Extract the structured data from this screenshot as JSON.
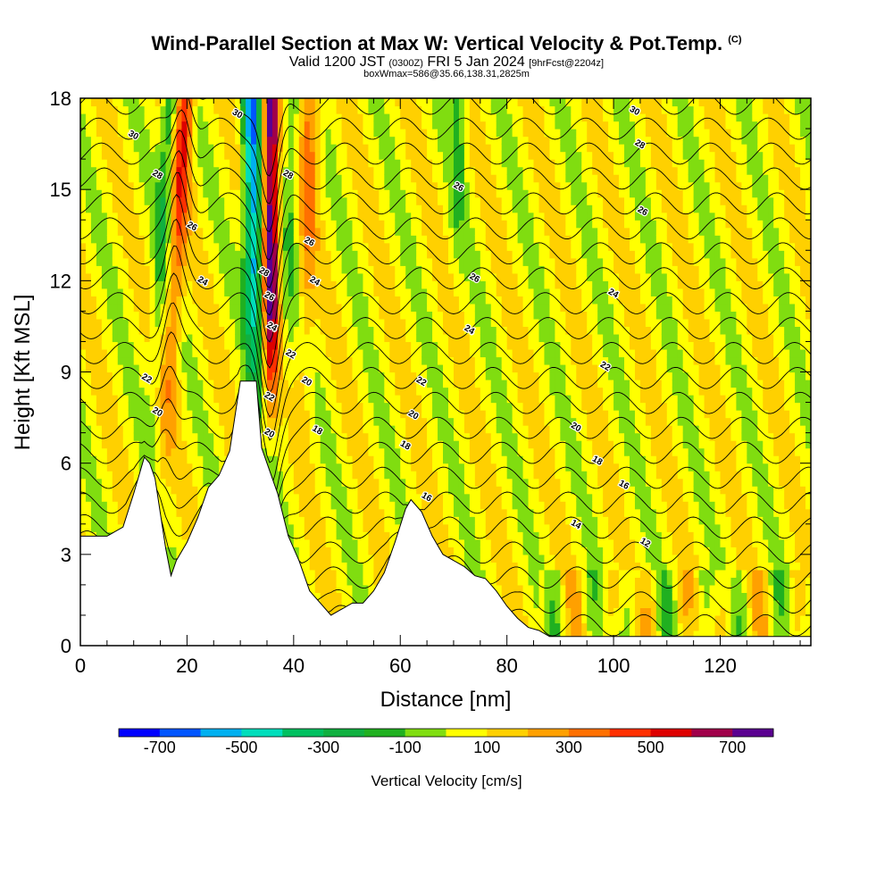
{
  "header": {
    "title": "Wind-Parallel Section at Max W: Vertical Velocity & Pot.Temp.",
    "copyright": "(C)",
    "valid_main": "Valid 1200 JST",
    "valid_z": "(0300Z)",
    "valid_date": "FRI 5 Jan 2024",
    "valid_fcst": "[9hrFcst@2204z]",
    "box_info": "boxWmax=586@35.66,138.31,2825m"
  },
  "chart_data": {
    "type": "heatmap",
    "xlabel": "Distance [nm]",
    "ylabel": "Height [Kft MSL]",
    "xlim": [
      0,
      137
    ],
    "ylim": [
      0,
      18
    ],
    "x_ticks": [
      0,
      20,
      40,
      60,
      80,
      100,
      120
    ],
    "y_ticks": [
      0,
      3,
      6,
      9,
      12,
      15,
      18
    ],
    "colorbar": {
      "title": "Vertical Velocity [cm/s]",
      "tick_labels": [
        "-700",
        "-500",
        "-300",
        "-100",
        "100",
        "300",
        "500",
        "700"
      ],
      "tick_values": [
        -700,
        -500,
        -300,
        -100,
        100,
        300,
        500,
        700
      ],
      "range": [
        -800,
        800
      ],
      "colors": [
        "#0000ff",
        "#0055ff",
        "#00b0f0",
        "#00ddbb",
        "#00c060",
        "#10b040",
        "#20b020",
        "#80dd10",
        "#ffff00",
        "#ffd000",
        "#ffa000",
        "#ff7000",
        "#ff3000",
        "#dd0000",
        "#a0004a",
        "#5a0090"
      ]
    },
    "terrain_kft": [
      [
        0,
        3.6
      ],
      [
        5,
        3.6
      ],
      [
        8,
        3.9
      ],
      [
        10,
        5.0
      ],
      [
        12,
        6.2
      ],
      [
        13,
        6.0
      ],
      [
        14,
        5.5
      ],
      [
        16,
        3.2
      ],
      [
        17,
        2.3
      ],
      [
        18,
        2.8
      ],
      [
        20,
        3.4
      ],
      [
        22,
        4.2
      ],
      [
        24,
        5.2
      ],
      [
        26,
        5.6
      ],
      [
        28,
        6.4
      ],
      [
        30,
        8.7
      ],
      [
        33,
        8.7
      ],
      [
        34,
        6.5
      ],
      [
        35,
        6.0
      ],
      [
        37,
        5.0
      ],
      [
        39,
        3.6
      ],
      [
        41,
        2.8
      ],
      [
        43,
        1.8
      ],
      [
        45,
        1.4
      ],
      [
        47,
        1.0
      ],
      [
        49,
        1.2
      ],
      [
        51,
        1.4
      ],
      [
        53,
        1.4
      ],
      [
        55,
        1.8
      ],
      [
        57,
        2.4
      ],
      [
        59,
        3.4
      ],
      [
        61,
        4.5
      ],
      [
        62,
        4.8
      ],
      [
        64,
        4.4
      ],
      [
        66,
        3.6
      ],
      [
        68,
        3.0
      ],
      [
        70,
        2.8
      ],
      [
        72,
        2.6
      ],
      [
        74,
        2.3
      ],
      [
        76,
        2.2
      ],
      [
        78,
        1.8
      ],
      [
        80,
        1.3
      ],
      [
        82,
        0.9
      ],
      [
        84,
        0.6
      ],
      [
        86,
        0.5
      ],
      [
        88,
        0.3
      ],
      [
        90,
        0.3
      ],
      [
        137,
        0.3
      ]
    ],
    "theta_labels": [
      {
        "v": "30",
        "x": 10,
        "y": 16.8
      },
      {
        "v": "28",
        "x": 14.5,
        "y": 15.5
      },
      {
        "v": "26",
        "x": 21,
        "y": 13.8
      },
      {
        "v": "24",
        "x": 23,
        "y": 12.0
      },
      {
        "v": "22",
        "x": 12.5,
        "y": 8.8
      },
      {
        "v": "20",
        "x": 14.5,
        "y": 7.7
      },
      {
        "v": "30",
        "x": 29.5,
        "y": 17.5
      },
      {
        "v": "28",
        "x": 34.5,
        "y": 12.3
      },
      {
        "v": "26",
        "x": 35.5,
        "y": 11.5
      },
      {
        "v": "24",
        "x": 36,
        "y": 10.5
      },
      {
        "v": "22",
        "x": 35.5,
        "y": 8.2
      },
      {
        "v": "20",
        "x": 35.5,
        "y": 7.0
      },
      {
        "v": "28",
        "x": 39,
        "y": 15.5
      },
      {
        "v": "26",
        "x": 43,
        "y": 13.3
      },
      {
        "v": "24",
        "x": 44,
        "y": 12.0
      },
      {
        "v": "22",
        "x": 39.5,
        "y": 9.6
      },
      {
        "v": "20",
        "x": 42.5,
        "y": 8.7
      },
      {
        "v": "18",
        "x": 44.5,
        "y": 7.1
      },
      {
        "v": "26",
        "x": 71,
        "y": 15.1
      },
      {
        "v": "26",
        "x": 74,
        "y": 12.1
      },
      {
        "v": "24",
        "x": 73,
        "y": 10.4
      },
      {
        "v": "22",
        "x": 64,
        "y": 8.7
      },
      {
        "v": "20",
        "x": 62.5,
        "y": 7.6
      },
      {
        "v": "18",
        "x": 61,
        "y": 6.6
      },
      {
        "v": "16",
        "x": 65,
        "y": 4.9
      },
      {
        "v": "30",
        "x": 104,
        "y": 17.6
      },
      {
        "v": "28",
        "x": 105,
        "y": 16.5
      },
      {
        "v": "26",
        "x": 105.5,
        "y": 14.3
      },
      {
        "v": "24",
        "x": 100,
        "y": 11.6
      },
      {
        "v": "22",
        "x": 98.5,
        "y": 9.2
      },
      {
        "v": "20",
        "x": 93,
        "y": 7.2
      },
      {
        "v": "18",
        "x": 97,
        "y": 6.1
      },
      {
        "v": "16",
        "x": 102,
        "y": 5.3
      },
      {
        "v": "14",
        "x": 93,
        "y": 4.0
      },
      {
        "v": "12",
        "x": 106,
        "y": 3.4
      }
    ]
  }
}
